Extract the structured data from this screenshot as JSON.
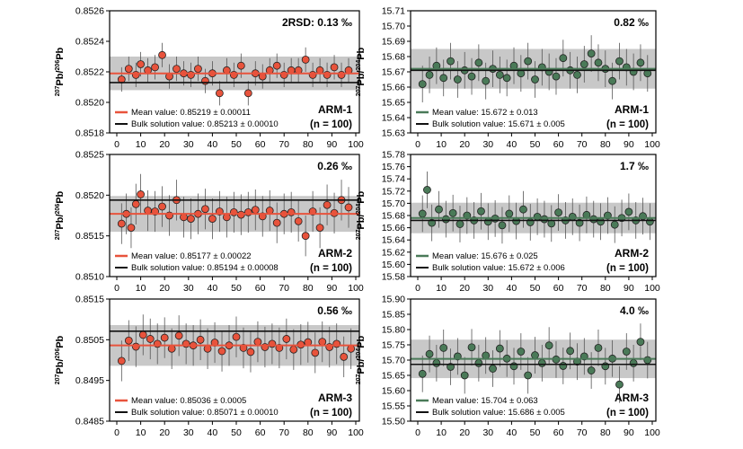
{
  "figure": {
    "panels_left": [
      {
        "y_label_main": "Pb/",
        "y_label_sup1": "207",
        "y_label_sup2": "206",
        "y_label_tail": "Pb",
        "rsd_text": "2RSD: 0.13 ‰",
        "sample": "ARM-1",
        "n_text": "(n = 100)",
        "legend_mean": "Mean value: 0.85219 ± 0.00011",
        "legend_bulk": "Bulk solution value: 0.85213 ± 0.00010",
        "y_ticks": [
          "0.8526",
          "0.8524",
          "0.8522",
          "0.8520",
          "0.8518"
        ]
      },
      {
        "y_label_main": "Pb/",
        "y_label_sup1": "207",
        "y_label_sup2": "206",
        "y_label_tail": "Pb",
        "rsd_text": "0.26 ‰",
        "sample": "ARM-2",
        "n_text": "(n = 100)",
        "legend_mean": "Mean value: 0.85177 ± 0.00022",
        "legend_bulk": "Bulk solution value: 0.85194 ± 0.00008",
        "y_ticks": [
          "0.8525",
          "0.8520",
          "0.8515",
          "0.8510"
        ]
      },
      {
        "y_label_main": "Pb/",
        "y_label_sup1": "207",
        "y_label_sup2": "206",
        "y_label_tail": "Pb",
        "rsd_text": "0.56 ‰",
        "sample": "ARM-3",
        "n_text": "(n = 100)",
        "legend_mean": "Mean value: 0.85036 ± 0.0005",
        "legend_bulk": "Bulk solution value: 0.85071 ± 0.00010",
        "y_ticks": [
          "0.8515",
          "0.8505",
          "0.8495",
          "0.8485"
        ]
      }
    ],
    "panels_right": [
      {
        "y_label_main": "Pb/",
        "y_label_sup1": "207",
        "y_label_sup2": "204",
        "y_label_tail": "Pb",
        "rsd_text": "0.82 ‰",
        "sample": "ARM-1",
        "n_text": "(n = 100)",
        "legend_mean": "Mean value: 15.672 ± 0.013",
        "legend_bulk": "Bulk solution value: 15.671 ± 0.005",
        "y_ticks": [
          "15.71",
          "15.70",
          "15.69",
          "15.68",
          "15.67",
          "15.66",
          "15.65",
          "15.64",
          "15.63"
        ]
      },
      {
        "y_label_main": "Pb/",
        "y_label_sup1": "207",
        "y_label_sup2": "204",
        "y_label_tail": "Pb",
        "rsd_text": "1.7 ‰",
        "sample": "ARM-2",
        "n_text": "(n = 100)",
        "legend_mean": "Mean value: 15.676 ± 0.025",
        "legend_bulk": "Bulk solution value: 15.672 ± 0.006",
        "y_ticks": [
          "15.78",
          "15.76",
          "15.74",
          "15.72",
          "15.70",
          "15.68",
          "15.66",
          "15.64",
          "15.62",
          "15.60",
          "15.58"
        ]
      },
      {
        "y_label_main": "Pb/",
        "y_label_sup1": "207",
        "y_label_sup2": "204",
        "y_label_tail": "Pb",
        "rsd_text": "4.0 ‰",
        "sample": "ARM-3",
        "n_text": "(n = 100)",
        "legend_mean": "Mean value: 15.704 ± 0.063",
        "legend_bulk": "Bulk solution value: 15.686 ± 0.005",
        "y_ticks": [
          "15.90",
          "15.85",
          "15.80",
          "15.75",
          "15.70",
          "15.65",
          "15.60",
          "15.55",
          "15.50"
        ]
      }
    ],
    "x_ticks": [
      "0",
      "10",
      "20",
      "30",
      "40",
      "50",
      "60",
      "70",
      "80",
      "90",
      "100"
    ],
    "colors": {
      "left_marker": "#e8533c",
      "right_marker": "#4a7a58",
      "band": "#c8c8c8",
      "bulk_line": "#111111"
    }
  },
  "chart_data": [
    {
      "type": "scatter",
      "title": "",
      "xlabel": "",
      "ylabel": "207Pb/206Pb",
      "sample": "ARM-1",
      "xlim": [
        0,
        100
      ],
      "ylim": [
        0.8518,
        0.8526
      ],
      "n": 100,
      "mean": 0.85219,
      "mean_unc": 0.00011,
      "bulk": 0.85213,
      "bulk_unc": 0.0001,
      "rsd_permil": 0.13,
      "series": [
        {
          "x": [
            2,
            5,
            8,
            10,
            13,
            16,
            19,
            22,
            25,
            28,
            31,
            34,
            37,
            40,
            43,
            46,
            49,
            52,
            55,
            58,
            61,
            64,
            67,
            70,
            73,
            76,
            79,
            82,
            85,
            88,
            91,
            94,
            97
          ],
          "y": [
            0.85215,
            0.85222,
            0.85218,
            0.85225,
            0.85221,
            0.85223,
            0.85231,
            0.85217,
            0.85222,
            0.85219,
            0.85218,
            0.85222,
            0.85214,
            0.85219,
            0.85206,
            0.85221,
            0.85218,
            0.85224,
            0.85206,
            0.85219,
            0.85217,
            0.85221,
            0.85224,
            0.85218,
            0.85221,
            0.85221,
            0.85228,
            0.85218,
            0.85221,
            0.85218,
            0.85223,
            0.85218,
            0.85221
          ],
          "err": 8e-05
        }
      ]
    },
    {
      "type": "scatter",
      "title": "",
      "xlabel": "",
      "ylabel": "207Pb/206Pb",
      "sample": "ARM-2",
      "xlim": [
        0,
        100
      ],
      "ylim": [
        0.851,
        0.8525
      ],
      "n": 100,
      "mean": 0.85177,
      "mean_unc": 0.00022,
      "bulk": 0.85194,
      "bulk_unc": 8e-05,
      "rsd_permil": 0.26,
      "series": [
        {
          "x": [
            2,
            4,
            6,
            8,
            10,
            13,
            16,
            19,
            22,
            25,
            28,
            31,
            34,
            37,
            40,
            43,
            46,
            49,
            52,
            55,
            58,
            61,
            64,
            67,
            70,
            73,
            76,
            79,
            82,
            85,
            88,
            91,
            94,
            97
          ],
          "y": [
            0.85165,
            0.85177,
            0.8516,
            0.85189,
            0.85201,
            0.85181,
            0.8518,
            0.85186,
            0.85175,
            0.85194,
            0.85173,
            0.85171,
            0.85177,
            0.85183,
            0.85171,
            0.8518,
            0.85173,
            0.85179,
            0.85176,
            0.85179,
            0.85182,
            0.85174,
            0.85181,
            0.85166,
            0.85177,
            0.85179,
            0.85168,
            0.8515,
            0.8518,
            0.8516,
            0.85188,
            0.85178,
            0.85194,
            0.85185
          ],
          "err": 0.00025
        }
      ]
    },
    {
      "type": "scatter",
      "title": "",
      "xlabel": "",
      "ylabel": "207Pb/206Pb",
      "sample": "ARM-3",
      "xlim": [
        0,
        100
      ],
      "ylim": [
        0.8485,
        0.8515
      ],
      "n": 100,
      "mean": 0.85036,
      "mean_unc": 0.0005,
      "bulk": 0.85071,
      "bulk_unc": 0.0001,
      "rsd_permil": 0.56,
      "series": [
        {
          "x": [
            2,
            5,
            8,
            11,
            14,
            17,
            20,
            23,
            26,
            29,
            32,
            35,
            38,
            41,
            44,
            47,
            50,
            53,
            56,
            59,
            62,
            65,
            68,
            71,
            74,
            77,
            80,
            83,
            86,
            89,
            92,
            95,
            98
          ],
          "y": [
            0.84998,
            0.85048,
            0.85033,
            0.85062,
            0.85052,
            0.8504,
            0.85055,
            0.85028,
            0.8506,
            0.8504,
            0.85036,
            0.8505,
            0.85028,
            0.85043,
            0.85022,
            0.85036,
            0.85057,
            0.8503,
            0.8502,
            0.85045,
            0.85032,
            0.8504,
            0.8503,
            0.85052,
            0.85026,
            0.85038,
            0.85044,
            0.85018,
            0.85045,
            0.85032,
            0.8504,
            0.85008,
            0.85028
          ],
          "err": 0.0005
        }
      ]
    },
    {
      "type": "scatter",
      "title": "",
      "xlabel": "",
      "ylabel": "207Pb/204Pb",
      "sample": "ARM-1",
      "xlim": [
        0,
        100
      ],
      "ylim": [
        15.63,
        15.71
      ],
      "n": 100,
      "mean": 15.672,
      "mean_unc": 0.013,
      "bulk": 15.671,
      "bulk_unc": 0.005,
      "rsd_permil": 0.82,
      "series": [
        {
          "x": [
            2,
            5,
            8,
            11,
            14,
            17,
            20,
            23,
            26,
            29,
            32,
            35,
            38,
            41,
            44,
            47,
            50,
            53,
            56,
            59,
            62,
            65,
            68,
            71,
            74,
            77,
            80,
            83,
            86,
            89,
            92,
            95,
            98
          ],
          "y": [
            15.662,
            15.668,
            15.674,
            15.666,
            15.677,
            15.665,
            15.671,
            15.667,
            15.676,
            15.664,
            15.672,
            15.668,
            15.666,
            15.674,
            15.669,
            15.677,
            15.665,
            15.673,
            15.67,
            15.667,
            15.679,
            15.671,
            15.668,
            15.675,
            15.682,
            15.676,
            15.672,
            15.664,
            15.677,
            15.673,
            15.67,
            15.676,
            15.669
          ],
          "err": 0.012
        }
      ]
    },
    {
      "type": "scatter",
      "title": "",
      "xlabel": "",
      "ylabel": "207Pb/204Pb",
      "sample": "ARM-2",
      "xlim": [
        0,
        100
      ],
      "ylim": [
        15.58,
        15.78
      ],
      "n": 100,
      "mean": 15.676,
      "mean_unc": 0.025,
      "bulk": 15.672,
      "bulk_unc": 0.006,
      "rsd_permil": 1.7,
      "series": [
        {
          "x": [
            2,
            4,
            6,
            9,
            12,
            15,
            18,
            21,
            24,
            27,
            30,
            33,
            36,
            39,
            42,
            45,
            48,
            51,
            54,
            57,
            60,
            63,
            66,
            69,
            72,
            75,
            78,
            81,
            84,
            87,
            90,
            93,
            96,
            99
          ],
          "y": [
            15.683,
            15.722,
            15.668,
            15.69,
            15.674,
            15.684,
            15.666,
            15.68,
            15.672,
            15.687,
            15.67,
            15.675,
            15.664,
            15.683,
            15.671,
            15.69,
            15.669,
            15.678,
            15.674,
            15.667,
            15.685,
            15.672,
            15.678,
            15.668,
            15.681,
            15.674,
            15.67,
            15.68,
            15.665,
            15.676,
            15.686,
            15.672,
            15.679,
            15.67
          ],
          "err": 0.03
        }
      ]
    },
    {
      "type": "scatter",
      "title": "",
      "xlabel": "",
      "ylabel": "207Pb/204Pb",
      "sample": "ARM-3",
      "xlim": [
        0,
        100
      ],
      "ylim": [
        15.5,
        15.9
      ],
      "n": 100,
      "mean": 15.704,
      "mean_unc": 0.063,
      "bulk": 15.686,
      "bulk_unc": 0.005,
      "rsd_permil": 4.0,
      "series": [
        {
          "x": [
            2,
            5,
            8,
            11,
            14,
            17,
            20,
            23,
            26,
            29,
            32,
            35,
            38,
            41,
            44,
            47,
            50,
            53,
            56,
            59,
            62,
            65,
            68,
            71,
            74,
            77,
            80,
            83,
            86,
            89,
            92,
            95,
            98
          ],
          "y": [
            15.655,
            15.72,
            15.69,
            15.74,
            15.678,
            15.712,
            15.65,
            15.742,
            15.69,
            15.715,
            15.672,
            15.738,
            15.705,
            15.68,
            15.728,
            15.65,
            15.716,
            15.69,
            15.748,
            15.702,
            15.681,
            15.73,
            15.695,
            15.712,
            15.666,
            15.74,
            15.68,
            15.705,
            15.62,
            15.728,
            15.69,
            15.76,
            15.7
          ],
          "err": 0.06
        }
      ]
    }
  ]
}
